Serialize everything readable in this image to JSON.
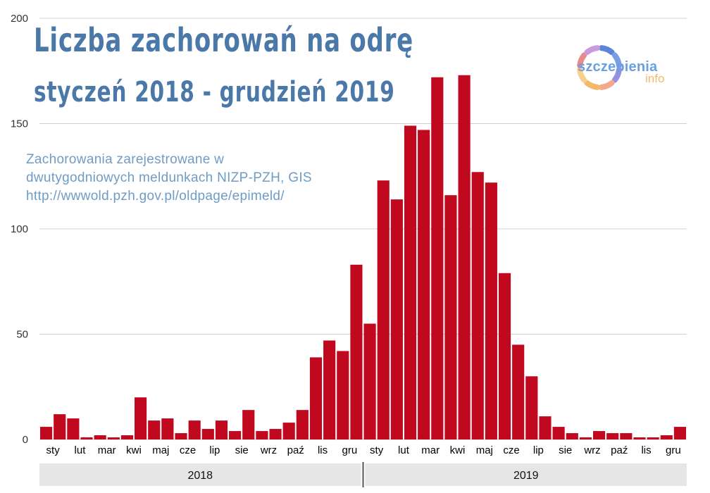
{
  "header": {
    "title_line1": "Liczba zachorowań na odrę",
    "title_line2": "styczeń 2018 - grudzień 2019",
    "subtitle_line1": "Zachorowania zarejestrowane w",
    "subtitle_line2": "dwutygodniowych meldunkach NIZP-PZH, GIS",
    "subtitle_line3": "http://wwwold.pzh.gov.pl/oldpage/epimeld/"
  },
  "logo": {
    "text_main": "szczepienia",
    "text_sub": "info",
    "ring_colors": [
      "#5b86d8",
      "#7a9ee6",
      "#9a8fe0",
      "#f4a98a",
      "#f2b96b",
      "#f6d18d",
      "#e88b8b",
      "#c89adf"
    ]
  },
  "colors": {
    "bar": "#c0091f",
    "grid": "#d0d0d0",
    "axis_text": "#000000",
    "year_band": "#e6e6e6"
  },
  "chart_data": {
    "type": "bar",
    "title": "Liczba zachorowań na odrę",
    "subtitle": "styczeń 2018 - grudzień 2019",
    "ylim": [
      0,
      200
    ],
    "yticks": [
      0,
      50,
      100,
      150,
      200
    ],
    "grid": true,
    "legend": "none",
    "values": [
      6,
      12,
      10,
      1,
      2,
      1,
      2,
      20,
      9,
      10,
      3,
      9,
      5,
      9,
      4,
      14,
      4,
      5,
      8,
      14,
      39,
      47,
      42,
      83,
      55,
      123,
      114,
      149,
      147,
      172,
      116,
      173,
      127,
      122,
      79,
      45,
      30,
      11,
      6,
      3,
      1,
      4,
      3,
      3,
      1,
      1,
      2,
      6
    ],
    "month_labels": [
      {
        "label": "sty",
        "bar": 0
      },
      {
        "label": "lut",
        "bar": 2
      },
      {
        "label": "mar",
        "bar": 4
      },
      {
        "label": "kwi",
        "bar": 6
      },
      {
        "label": "maj",
        "bar": 8
      },
      {
        "label": "cze",
        "bar": 10
      },
      {
        "label": "lip",
        "bar": 12
      },
      {
        "label": "sie",
        "bar": 14
      },
      {
        "label": "wrz",
        "bar": 16
      },
      {
        "label": "paź",
        "bar": 18
      },
      {
        "label": "lis",
        "bar": 20
      },
      {
        "label": "gru",
        "bar": 22
      },
      {
        "label": "sty",
        "bar": 24
      },
      {
        "label": "lut",
        "bar": 26
      },
      {
        "label": "mar",
        "bar": 28
      },
      {
        "label": "kwi",
        "bar": 30
      },
      {
        "label": "maj",
        "bar": 32
      },
      {
        "label": "cze",
        "bar": 34
      },
      {
        "label": "lip",
        "bar": 36
      },
      {
        "label": "sie",
        "bar": 38
      },
      {
        "label": "wrz",
        "bar": 40
      },
      {
        "label": "paź",
        "bar": 42
      },
      {
        "label": "lis",
        "bar": 44
      },
      {
        "label": "gru",
        "bar": 46
      }
    ],
    "years": [
      {
        "label": "2018",
        "first_bar": 0,
        "last_bar": 23
      },
      {
        "label": "2019",
        "first_bar": 24,
        "last_bar": 47
      }
    ]
  }
}
